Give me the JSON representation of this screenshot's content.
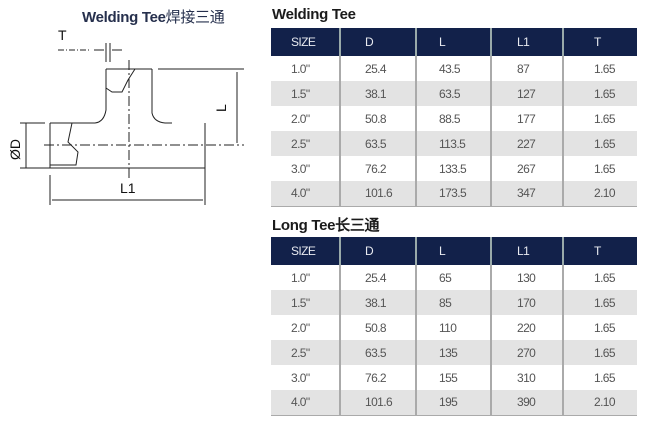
{
  "diagram": {
    "title": "Welding Tee",
    "title_cn": "焊接三通",
    "labels": {
      "T": "T",
      "L": "L",
      "OD": "ØD",
      "L1": "L1"
    }
  },
  "tables": [
    {
      "title": "Welding Tee",
      "headers": [
        "SIZE",
        "D",
        "L",
        "L1",
        "T"
      ],
      "rows": [
        [
          "1.0\"",
          "25.4",
          "43.5",
          "87",
          "1.65"
        ],
        [
          "1.5\"",
          "38.1",
          "63.5",
          "127",
          "1.65"
        ],
        [
          "2.0\"",
          "50.8",
          "88.5",
          "177",
          "1.65"
        ],
        [
          "2.5\"",
          "63.5",
          "113.5",
          "227",
          "1.65"
        ],
        [
          "3.0\"",
          "76.2",
          "133.5",
          "267",
          "1.65"
        ],
        [
          "4.0\"",
          "101.6",
          "173.5",
          "347",
          "2.10"
        ]
      ]
    },
    {
      "title": "Long Tee长三通",
      "headers": [
        "SIZE",
        "D",
        "L",
        "L1",
        "T"
      ],
      "rows": [
        [
          "1.0\"",
          "25.4",
          "65",
          "130",
          "1.65"
        ],
        [
          "1.5\"",
          "38.1",
          "85",
          "170",
          "1.65"
        ],
        [
          "2.0\"",
          "50.8",
          "110",
          "220",
          "1.65"
        ],
        [
          "2.5\"",
          "63.5",
          "135",
          "270",
          "1.65"
        ],
        [
          "3.0\"",
          "76.2",
          "155",
          "310",
          "1.65"
        ],
        [
          "4.0\"",
          "101.6",
          "195",
          "390",
          "2.10"
        ]
      ]
    }
  ],
  "colors": {
    "header_bg": "#12214a",
    "alt_row": "#e3e3e3"
  }
}
